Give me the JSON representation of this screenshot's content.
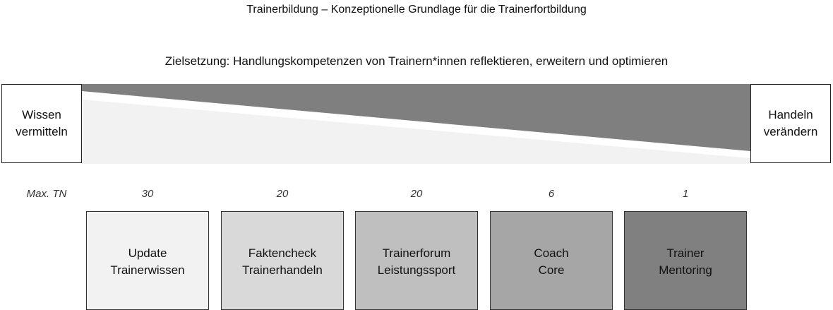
{
  "title": "Trainerbildung – Konzeptionelle Grundlage für die Trainerfortbildung",
  "goal": "Zielsetzung: Handlungskompetenzen von Trainern*innen reflektieren, erweitern und optimieren",
  "left_box": "Wissen\nvermitteln",
  "right_box": "Handeln\nverändern",
  "max_tn_label": "Max. TN",
  "modules": [
    {
      "name": "Update\nTrainerwissen",
      "max_tn": "30",
      "color": "#f2f2f2"
    },
    {
      "name": "Faktencheck\nTrainerhandeln",
      "max_tn": "20",
      "color": "#d9d9d9"
    },
    {
      "name": "Trainerforum\nLeistungssport",
      "max_tn": "20",
      "color": "#bfbfbf"
    },
    {
      "name": "Coach\nCore",
      "max_tn": "6",
      "color": "#a6a6a6"
    },
    {
      "name": "Trainer\nMentoring",
      "max_tn": "1",
      "color": "#808080"
    }
  ],
  "colors": {
    "wedge_dark": "#7f7f7f",
    "wedge_light": "#f2f2f2"
  }
}
